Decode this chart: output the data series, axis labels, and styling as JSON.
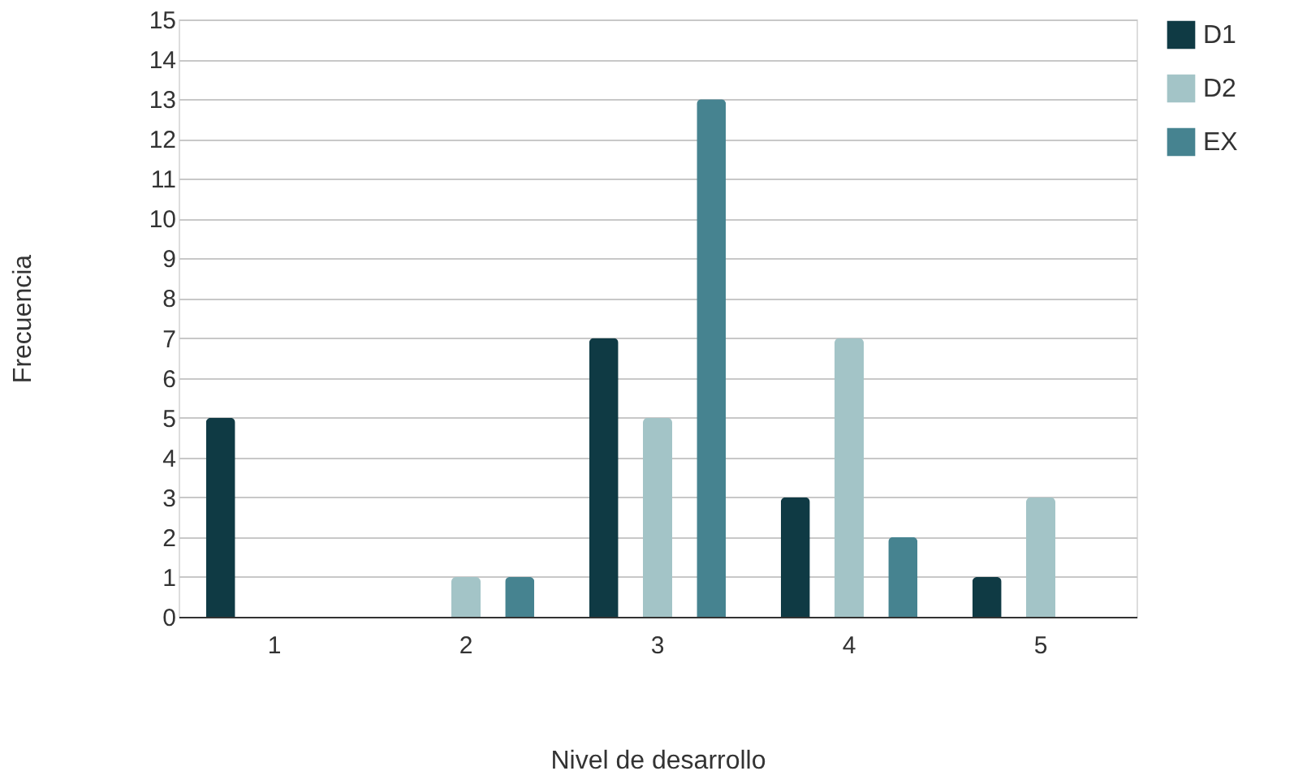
{
  "chart_data": {
    "type": "bar",
    "xlabel": "Nivel de desarrollo",
    "ylabel": "Frecuencia",
    "categories": [
      "1",
      "2",
      "3",
      "4",
      "5"
    ],
    "series": [
      {
        "name": "D1",
        "color": "#0f3a44",
        "values": [
          5,
          0,
          7,
          3,
          1
        ]
      },
      {
        "name": "D2",
        "color": "#a3c4c7",
        "values": [
          0,
          1,
          5,
          7,
          3
        ]
      },
      {
        "name": "EX",
        "color": "#468390",
        "values": [
          0,
          1,
          13,
          2,
          0
        ]
      }
    ],
    "ylim": [
      0,
      15
    ],
    "yticks": [
      0,
      1,
      2,
      3,
      4,
      5,
      6,
      7,
      8,
      9,
      10,
      11,
      12,
      13,
      14,
      15
    ],
    "grid": "y",
    "legend": "top right"
  }
}
